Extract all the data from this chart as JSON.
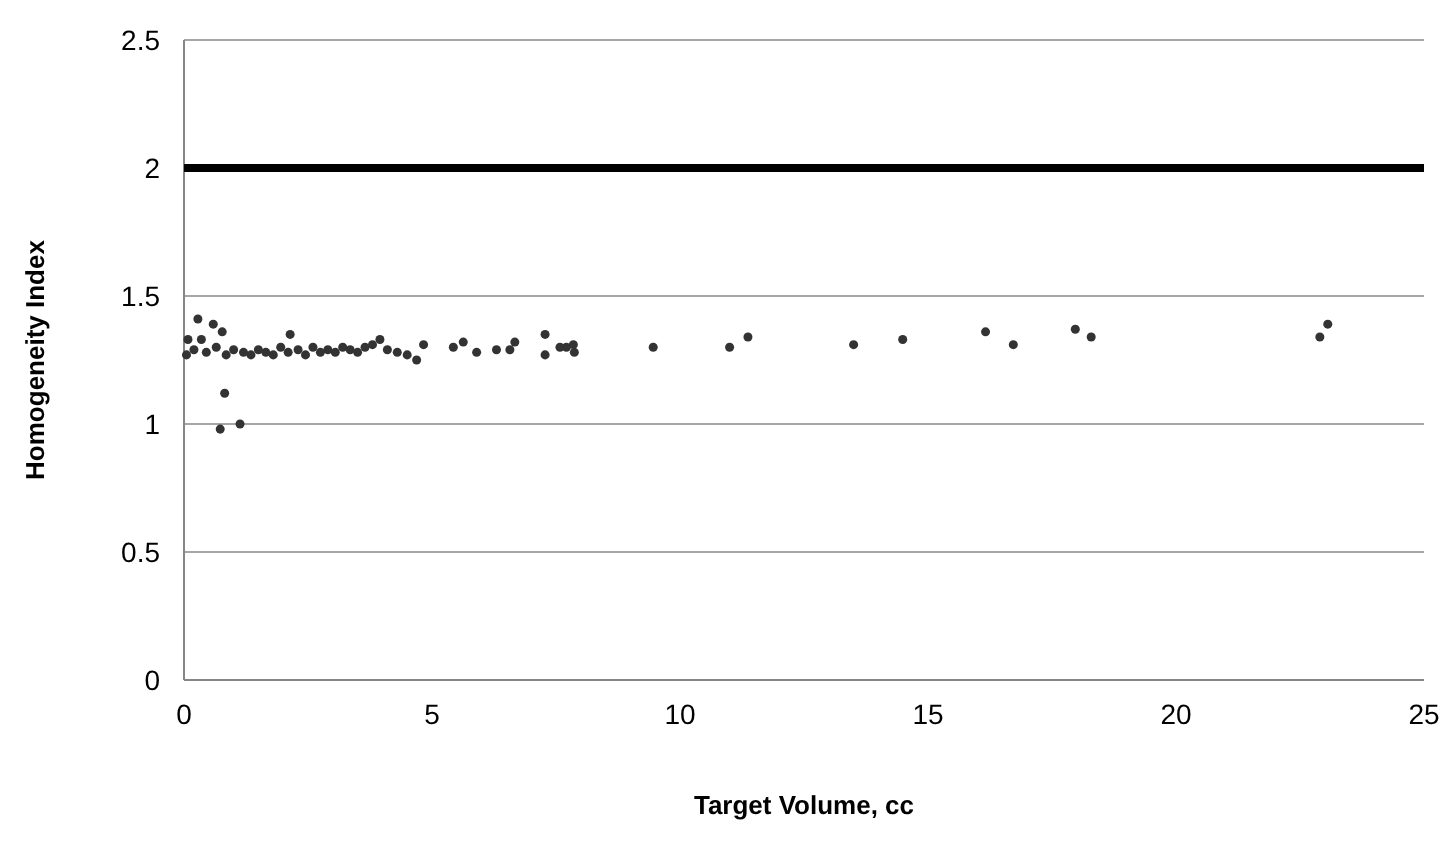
{
  "chart_data": {
    "type": "scatter",
    "xlabel": "Target Volume, cc",
    "ylabel": "Homogeneity Index",
    "xlim": [
      0,
      25
    ],
    "xticks": [
      0,
      5,
      10,
      15,
      20,
      25
    ],
    "ylim": [
      0,
      2.5
    ],
    "yticks": [
      0,
      0.5,
      1,
      1.5,
      2,
      2.5
    ],
    "grid": "y",
    "marker": "circle",
    "ref_lines": [
      {
        "axis": "y",
        "value": 2,
        "color": "#000000"
      }
    ],
    "series": [
      {
        "color": "#333333",
        "x": [
          0.05,
          0.08,
          0.2,
          0.28,
          0.35,
          0.45,
          0.59,
          0.65,
          0.73,
          0.77,
          0.82,
          0.85,
          1.0,
          1.13,
          1.2,
          1.35,
          1.5,
          1.65,
          1.8,
          1.95,
          2.1,
          2.14,
          2.3,
          2.45,
          2.6,
          2.75,
          2.9,
          3.05,
          3.2,
          3.35,
          3.5,
          3.65,
          3.8,
          3.95,
          4.1,
          4.3,
          4.5,
          4.69,
          4.83,
          5.43,
          5.63,
          5.9,
          6.3,
          6.57,
          6.67,
          7.28,
          7.28,
          7.58,
          7.71,
          7.85,
          7.87,
          9.46,
          11.0,
          11.37,
          13.5,
          14.49,
          16.16,
          16.72,
          17.97,
          18.29,
          22.9,
          23.06
        ],
        "values": [
          1.27,
          1.33,
          1.29,
          1.41,
          1.33,
          1.28,
          1.39,
          1.3,
          0.98,
          1.36,
          1.12,
          1.27,
          1.29,
          1.0,
          1.28,
          1.27,
          1.29,
          1.28,
          1.27,
          1.3,
          1.28,
          1.35,
          1.29,
          1.27,
          1.3,
          1.28,
          1.29,
          1.28,
          1.3,
          1.29,
          1.28,
          1.3,
          1.31,
          1.33,
          1.29,
          1.28,
          1.27,
          1.25,
          1.31,
          1.3,
          1.32,
          1.28,
          1.29,
          1.29,
          1.32,
          1.35,
          1.27,
          1.3,
          1.3,
          1.31,
          1.28,
          1.3,
          1.3,
          1.34,
          1.31,
          1.33,
          1.36,
          1.31,
          1.37,
          1.34,
          1.34,
          1.39
        ]
      }
    ]
  }
}
